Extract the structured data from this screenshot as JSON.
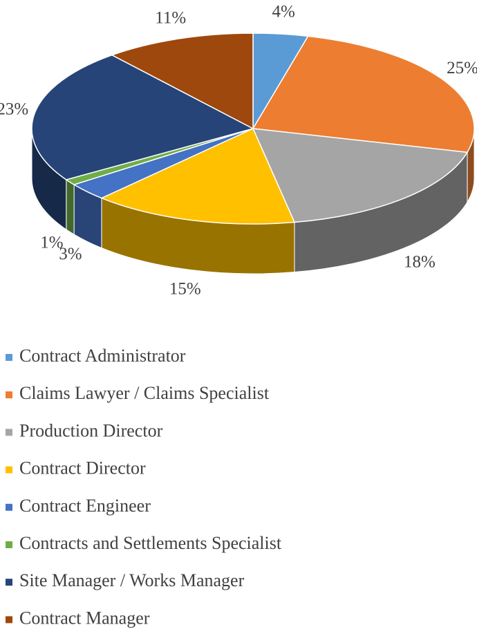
{
  "chart_data": {
    "type": "pie3d",
    "categories": [
      "Contract Administrator",
      "Claims Lawyer / Claims Specialist",
      "Production Director",
      "Contract Director",
      "Contract Engineer",
      "Contracts and Settlements Specialist",
      "Site Manager / Works Manager",
      "Contract Manager"
    ],
    "values": [
      4,
      25,
      18,
      15,
      3,
      1,
      23,
      11
    ],
    "value_labels": [
      "4%",
      "25%",
      "18%",
      "15%",
      "3%",
      "1%",
      "23%",
      "11%"
    ],
    "colors": [
      "#5b9bd5",
      "#ed7d31",
      "#a5a5a5",
      "#ffc000",
      "#4472c4",
      "#70ad47",
      "#264478",
      "#9e480e"
    ],
    "legend": "bottom"
  }
}
